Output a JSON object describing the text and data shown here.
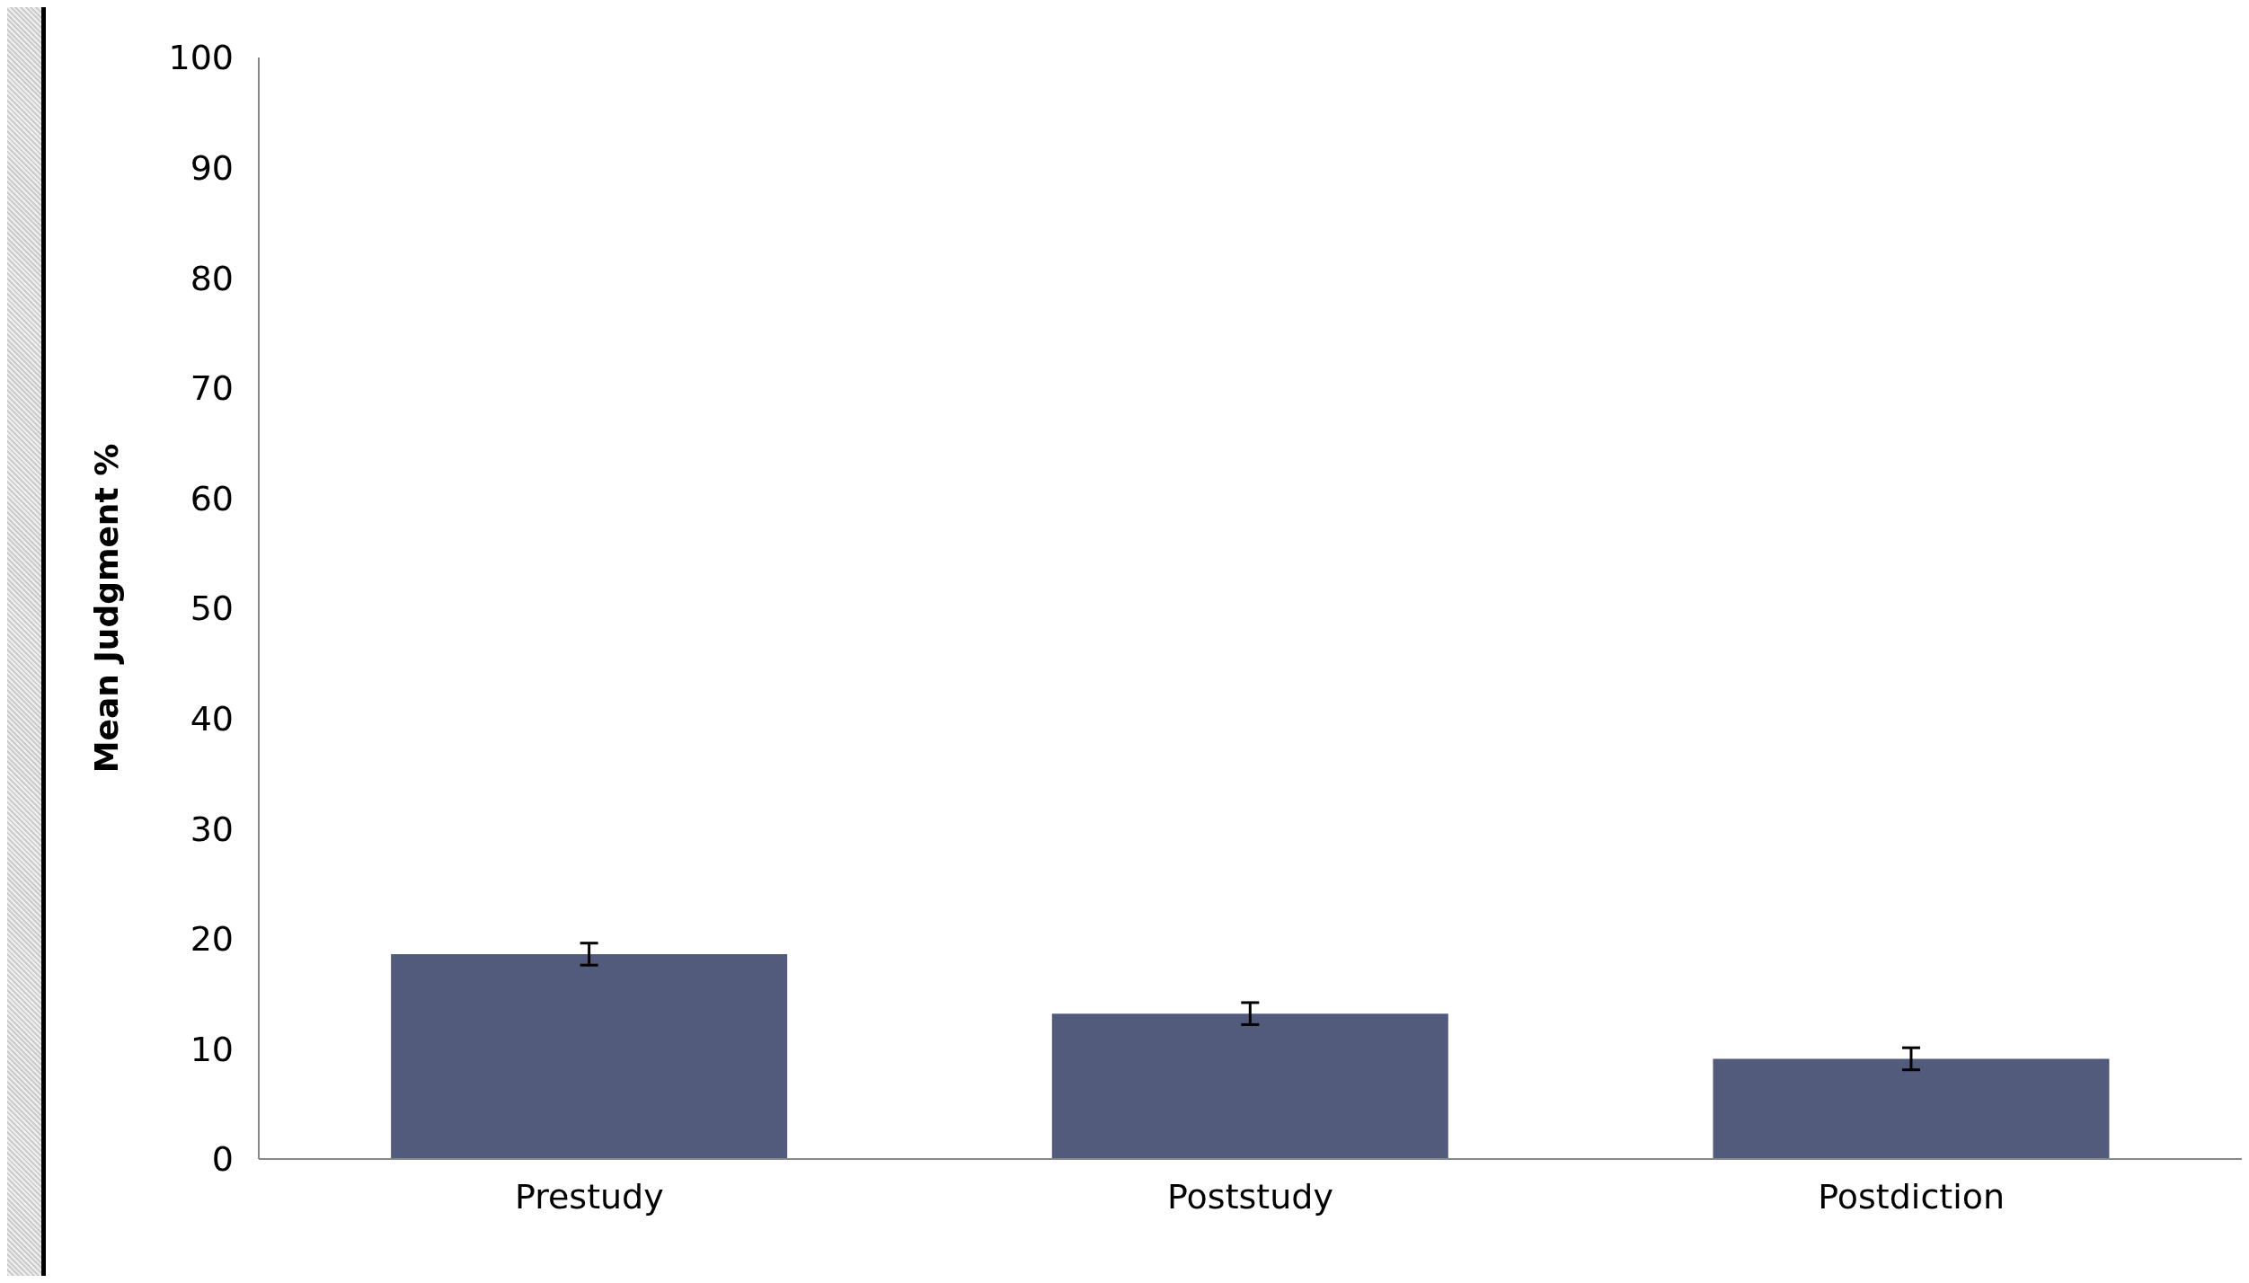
{
  "chart_data": {
    "type": "bar",
    "ylabel": "Mean Judgment %",
    "categories": [
      "Prestudy",
      "Poststudy",
      "Postdiction"
    ],
    "values": [
      18.6,
      13.2,
      9.1
    ],
    "errors": [
      1.0,
      1.0,
      1.0
    ],
    "color": "#525b7c",
    "ylim": [
      0,
      100
    ],
    "yticks": [
      0,
      10,
      20,
      30,
      40,
      50,
      60,
      70,
      80,
      90,
      100
    ],
    "grid": false,
    "legend": false
  }
}
